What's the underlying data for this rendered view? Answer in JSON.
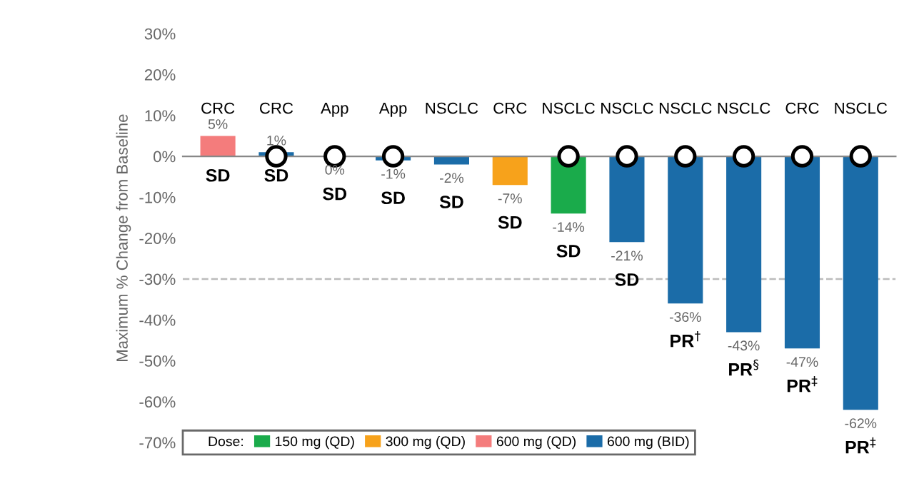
{
  "chart_data": {
    "type": "bar",
    "ylabel": "Maximum % Change from Baseline",
    "legend_title": "Dose:",
    "categories": [
      "CRC",
      "CRC",
      "App",
      "App",
      "NSCLC",
      "CRC",
      "NSCLC",
      "NSCLC",
      "NSCLC",
      "NSCLC",
      "CRC",
      "NSCLC"
    ],
    "series": [
      {
        "name": "150 mg (QD)",
        "color": "#1aab4b",
        "values": [
          null,
          null,
          null,
          null,
          null,
          null,
          -14,
          null,
          null,
          null,
          null,
          null
        ],
        "value_labels": [
          null,
          null,
          null,
          null,
          null,
          null,
          "-14%",
          null,
          null,
          null,
          null,
          null
        ]
      },
      {
        "name": "300 mg (QD)",
        "color": "#f7a21b",
        "values": [
          null,
          null,
          null,
          null,
          null,
          -7,
          null,
          null,
          null,
          null,
          null,
          null
        ],
        "value_labels": [
          null,
          null,
          null,
          null,
          null,
          "-7%",
          null,
          null,
          null,
          null,
          null,
          null
        ]
      },
      {
        "name": "600 mg (QD)",
        "color": "#f47c7c",
        "values": [
          5,
          null,
          null,
          null,
          null,
          null,
          null,
          null,
          null,
          null,
          null,
          null
        ],
        "value_labels": [
          "5%",
          null,
          null,
          null,
          null,
          null,
          null,
          null,
          null,
          null,
          null,
          null
        ]
      },
      {
        "name": "600 mg (BID)",
        "color": "#1b6ca8",
        "values": [
          null,
          1,
          0,
          -1,
          -2,
          null,
          null,
          -21,
          -36,
          -43,
          -47,
          -62
        ],
        "value_labels": [
          null,
          "1%",
          "0%",
          "-1%",
          "-2%",
          null,
          null,
          "-21%",
          "-36%",
          "-43%",
          "-47%",
          "-62%"
        ]
      },
      {
        "type": "scatter",
        "marker": "circle",
        "color": "#ffffff",
        "values": [
          null,
          0,
          0,
          0,
          null,
          null,
          0,
          0,
          0,
          0,
          0,
          0
        ]
      }
    ],
    "annotations": [
      "SD",
      "SD",
      "SD",
      "SD",
      "SD",
      "SD",
      "SD",
      "SD",
      "PR$^{†}$",
      "PR$^{§}$",
      "PR$^{‡}$",
      "PR$^{‡}$"
    ],
    "ref_lines": [
      {
        "axis": "y",
        "value": -30,
        "color": "#bbbbbb",
        "line_style": "dashed"
      }
    ],
    "ylim": [
      -70,
      30
    ],
    "yticks": [
      {
        "value": 30,
        "label": "30%"
      },
      {
        "value": 20,
        "label": "20%"
      },
      {
        "value": 10,
        "label": "10%"
      },
      {
        "value": 0,
        "label": "0%"
      },
      {
        "value": -10,
        "label": "-10%"
      },
      {
        "value": -20,
        "label": "-20%"
      },
      {
        "value": -30,
        "label": "-30%"
      },
      {
        "value": -40,
        "label": "-40%"
      },
      {
        "value": -50,
        "label": "-50%"
      },
      {
        "value": -60,
        "label": "-60%"
      },
      {
        "value": -70,
        "label": "-70%"
      }
    ],
    "grid": false,
    "legend": "bottom left"
  }
}
